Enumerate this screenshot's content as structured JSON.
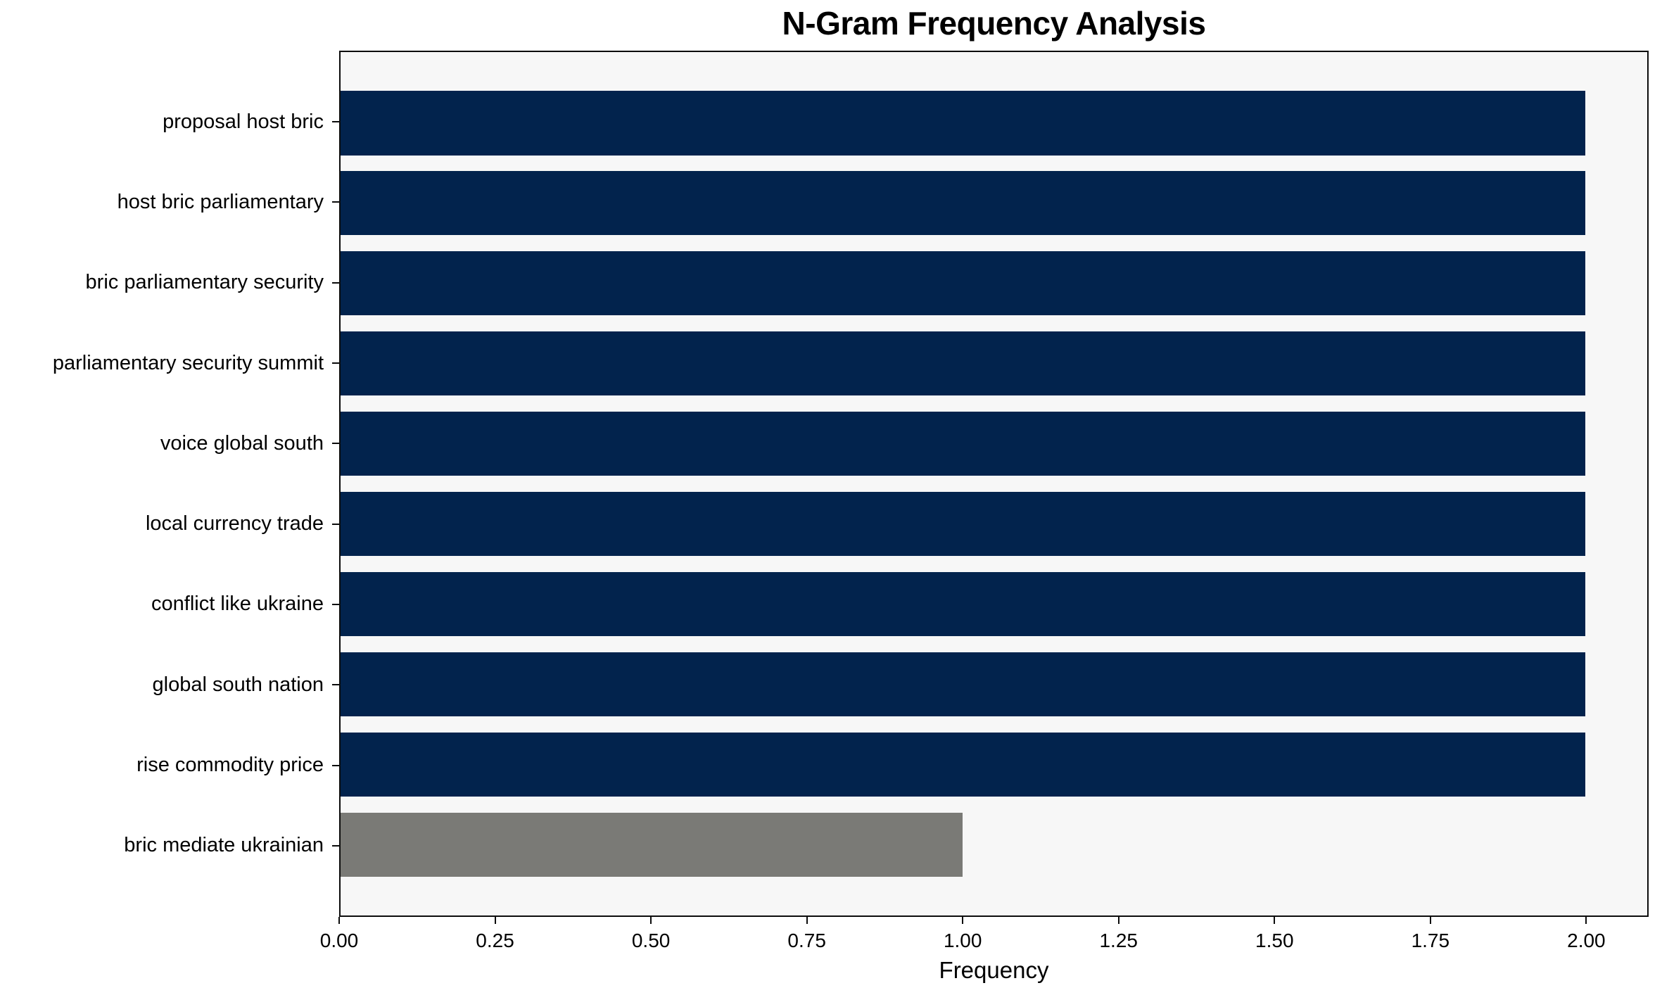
{
  "chart_data": {
    "type": "bar",
    "orientation": "horizontal",
    "title": "N-Gram Frequency Analysis",
    "xlabel": "Frequency",
    "ylabel": "",
    "categories": [
      "proposal host bric",
      "host bric parliamentary",
      "bric parliamentary security",
      "parliamentary security summit",
      "voice global south",
      "local currency trade",
      "conflict like ukraine",
      "global south nation",
      "rise commodity price",
      "bric mediate ukrainian"
    ],
    "values": [
      2,
      2,
      2,
      2,
      2,
      2,
      2,
      2,
      2,
      1
    ],
    "bar_colors": [
      "#02234d",
      "#02234d",
      "#02234d",
      "#02234d",
      "#02234d",
      "#02234d",
      "#02234d",
      "#02234d",
      "#02234d",
      "#7a7a76"
    ],
    "xlim": [
      0,
      2.1
    ],
    "xticks": [
      {
        "value": 0.0,
        "label": "0.00"
      },
      {
        "value": 0.25,
        "label": "0.25"
      },
      {
        "value": 0.5,
        "label": "0.50"
      },
      {
        "value": 0.75,
        "label": "0.75"
      },
      {
        "value": 1.0,
        "label": "1.00"
      },
      {
        "value": 1.25,
        "label": "1.25"
      },
      {
        "value": 1.5,
        "label": "1.50"
      },
      {
        "value": 1.75,
        "label": "1.75"
      },
      {
        "value": 2.0,
        "label": "2.00"
      }
    ],
    "grid": false,
    "legend_position": "none",
    "colors": {
      "bar_primary": "#02234d",
      "bar_secondary": "#7a7a76",
      "plot_background": "#f7f7f7",
      "figure_background": "#ffffff",
      "spine": "#0c0c0c",
      "text": "#000000"
    }
  }
}
